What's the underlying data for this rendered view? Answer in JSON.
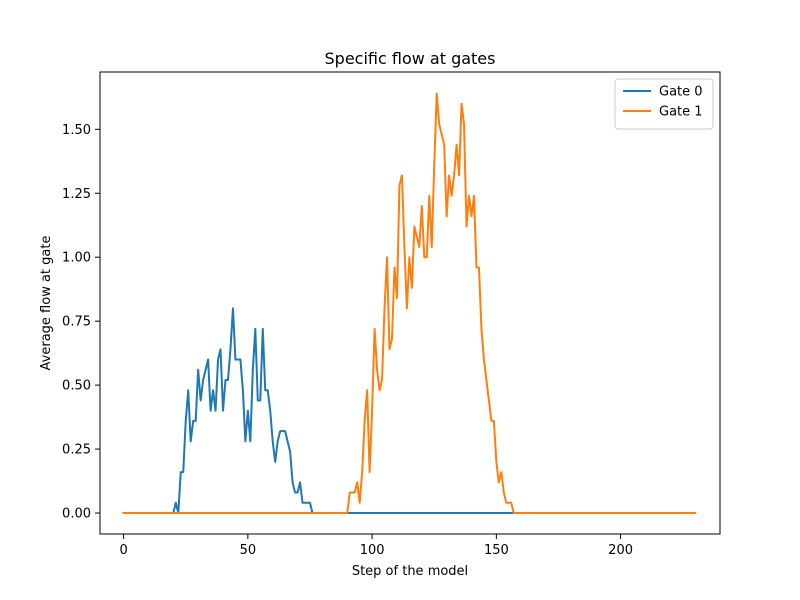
{
  "chart_data": {
    "type": "line",
    "title": "Specific flow at gates",
    "xlabel": "Step of the model",
    "ylabel": "Average flow at gate",
    "xlim": [
      -9.5,
      240
    ],
    "ylim": [
      -0.082,
      1.724
    ],
    "xticks": [
      0,
      50,
      100,
      150,
      200
    ],
    "xtick_labels": [
      "0",
      "50",
      "100",
      "150",
      "200"
    ],
    "yticks": [
      0.0,
      0.25,
      0.5,
      0.75,
      1.0,
      1.25,
      1.5
    ],
    "ytick_labels": [
      "0.00",
      "0.25",
      "0.50",
      "0.75",
      "1.00",
      "1.25",
      "1.50"
    ],
    "grid": false,
    "legend_position": "top-right",
    "series": [
      {
        "name": "Gate 0",
        "color": "#1f77b4",
        "x": [
          0,
          20,
          21,
          22,
          23,
          24,
          25,
          26,
          27,
          28,
          29,
          30,
          31,
          32,
          33,
          34,
          35,
          36,
          37,
          38,
          39,
          40,
          41,
          42,
          43,
          44,
          45,
          46,
          47,
          48,
          49,
          50,
          51,
          52,
          53,
          54,
          55,
          56,
          57,
          58,
          59,
          60,
          61,
          62,
          63,
          64,
          65,
          66,
          67,
          68,
          69,
          70,
          71,
          72,
          73,
          74,
          75,
          76,
          159,
          230
        ],
        "y": [
          0,
          0,
          0.04,
          0,
          0.16,
          0.16,
          0.36,
          0.48,
          0.28,
          0.36,
          0.36,
          0.56,
          0.44,
          0.52,
          0.56,
          0.6,
          0.4,
          0.48,
          0.4,
          0.6,
          0.64,
          0.4,
          0.52,
          0.52,
          0.64,
          0.8,
          0.6,
          0.6,
          0.6,
          0.48,
          0.28,
          0.4,
          0.28,
          0.56,
          0.72,
          0.44,
          0.44,
          0.72,
          0.48,
          0.48,
          0.4,
          0.28,
          0.2,
          0.28,
          0.32,
          0.32,
          0.32,
          0.28,
          0.24,
          0.12,
          0.08,
          0.08,
          0.12,
          0.04,
          0.04,
          0.04,
          0.04,
          0,
          0,
          0
        ]
      },
      {
        "name": "Gate 1",
        "color": "#ff7f0e",
        "x": [
          0,
          90,
          91,
          92,
          93,
          94,
          95,
          96,
          97,
          98,
          99,
          100,
          101,
          102,
          103,
          104,
          105,
          106,
          107,
          108,
          109,
          110,
          111,
          112,
          113,
          114,
          115,
          116,
          117,
          118,
          119,
          120,
          121,
          122,
          123,
          124,
          125,
          126,
          127,
          128,
          129,
          130,
          131,
          132,
          133,
          134,
          135,
          136,
          137,
          138,
          139,
          140,
          141,
          142,
          143,
          144,
          145,
          146,
          147,
          148,
          149,
          150,
          151,
          152,
          153,
          154,
          155,
          156,
          157,
          158,
          159,
          230
        ],
        "y": [
          0,
          0,
          0.08,
          0.08,
          0.08,
          0.12,
          0.04,
          0.16,
          0.36,
          0.48,
          0.16,
          0.4,
          0.72,
          0.56,
          0.48,
          0.52,
          0.8,
          1.0,
          0.64,
          0.68,
          0.96,
          0.84,
          1.28,
          1.32,
          1.04,
          0.8,
          1.0,
          0.88,
          1.12,
          1.08,
          1.04,
          1.2,
          1.0,
          1.0,
          1.24,
          1.04,
          1.36,
          1.64,
          1.52,
          1.48,
          1.44,
          1.16,
          1.32,
          1.24,
          1.32,
          1.44,
          1.32,
          1.6,
          1.52,
          1.12,
          1.24,
          1.16,
          1.24,
          0.96,
          0.96,
          0.72,
          0.6,
          0.52,
          0.44,
          0.36,
          0.36,
          0.2,
          0.12,
          0.16,
          0.08,
          0.04,
          0.04,
          0.04,
          0,
          0,
          0,
          0
        ]
      }
    ]
  }
}
